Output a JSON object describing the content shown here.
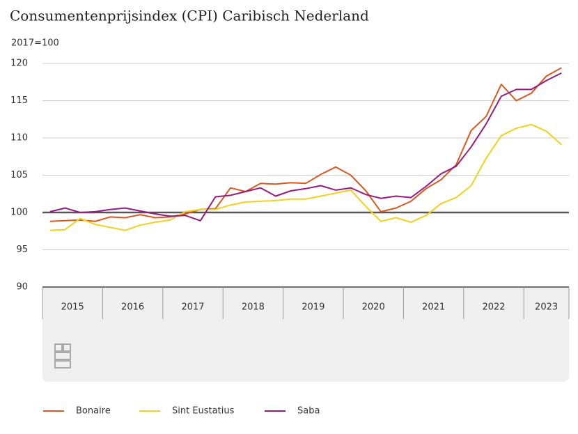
{
  "chart_data": {
    "type": "line",
    "title": "Consumentenprijsindex (CPI) Caribisch Nederland",
    "y_label": "2017=100",
    "years": [
      "2015",
      "2016",
      "2017",
      "2018",
      "2019",
      "2020",
      "2021",
      "2022",
      "2023"
    ],
    "ylim": [
      90,
      120
    ],
    "yticks": [
      90,
      95,
      100,
      105,
      110,
      115,
      120
    ],
    "grid": true,
    "reference_line": 100,
    "series": [
      {
        "name": "Bonaire",
        "color": "#d9581f",
        "values": [
          98.8,
          98.9,
          99.0,
          98.8,
          99.4,
          99.3,
          99.7,
          99.3,
          99.4,
          99.8,
          100.4,
          100.5,
          103.3,
          102.8,
          103.9,
          103.8,
          104.0,
          103.9,
          105.1,
          106.1,
          105.0,
          102.9,
          100.1,
          100.6,
          101.5,
          103.2,
          104.4,
          106.4,
          111.0,
          112.9,
          117.2,
          115.0,
          116.0,
          118.3,
          119.4
        ]
      },
      {
        "name": "Sint Eustatius",
        "color": "#f2d01c",
        "values": [
          97.6,
          97.7,
          99.2,
          98.4,
          98.0,
          97.6,
          98.3,
          98.7,
          99.0,
          100.1,
          100.4,
          100.4,
          101.0,
          101.4,
          101.5,
          101.6,
          101.8,
          101.8,
          102.2,
          102.6,
          103.0,
          100.8,
          98.8,
          99.3,
          98.7,
          99.6,
          101.2,
          102.0,
          103.6,
          107.3,
          110.3,
          111.3,
          111.8,
          110.9,
          109.1
        ]
      },
      {
        "name": "Saba",
        "color": "#951b81",
        "values": [
          100.1,
          100.6,
          100.0,
          100.1,
          100.4,
          100.6,
          100.2,
          99.8,
          99.5,
          99.6,
          98.9,
          102.1,
          102.3,
          102.8,
          103.3,
          102.2,
          102.9,
          103.2,
          103.6,
          103.0,
          103.3,
          102.4,
          101.9,
          102.2,
          102.0,
          103.5,
          105.2,
          106.2,
          108.8,
          111.9,
          115.6,
          116.5,
          116.5,
          117.7,
          118.7
        ]
      }
    ]
  }
}
